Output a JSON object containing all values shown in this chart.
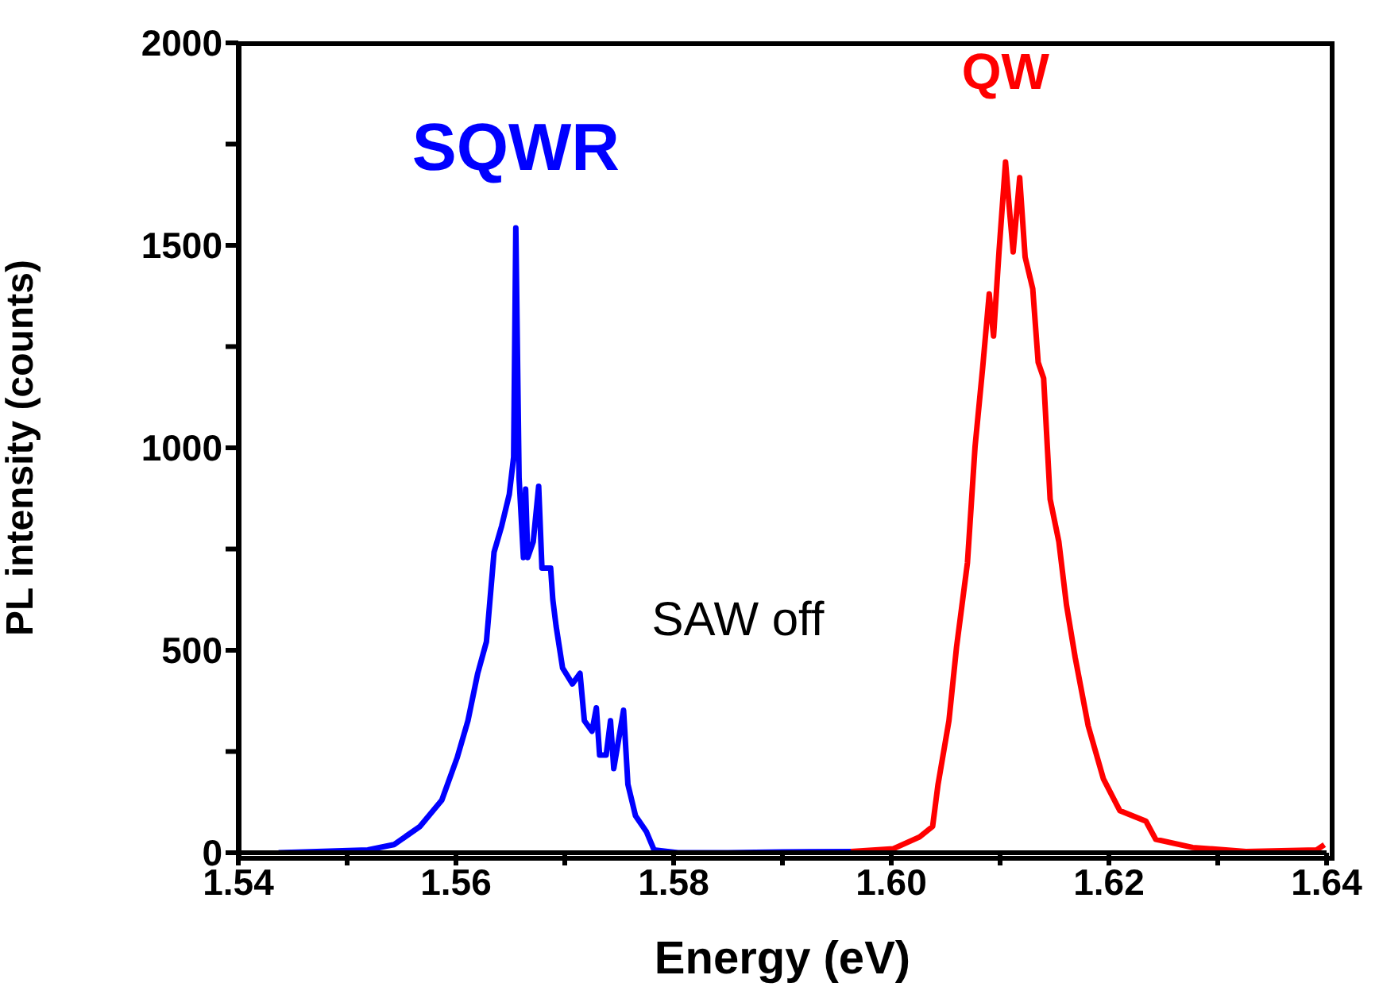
{
  "chart_data": {
    "type": "line",
    "xlabel": "Energy (eV)",
    "ylabel": "PL intensity (counts)",
    "xlim": [
      1.54,
      1.64
    ],
    "ylim": [
      0,
      2000
    ],
    "xticks": [
      {
        "value": 1.54,
        "label": "1.54"
      },
      {
        "value": 1.55,
        "label": null
      },
      {
        "value": 1.56,
        "label": "1.56"
      },
      {
        "value": 1.57,
        "label": null
      },
      {
        "value": 1.58,
        "label": "1.58"
      },
      {
        "value": 1.59,
        "label": null
      },
      {
        "value": 1.6,
        "label": "1.60"
      },
      {
        "value": 1.61,
        "label": null
      },
      {
        "value": 1.62,
        "label": "1.62"
      },
      {
        "value": 1.63,
        "label": null
      },
      {
        "value": 1.64,
        "label": "1.64"
      }
    ],
    "yticks": [
      0,
      {
        "value": 250,
        "label": null
      },
      500,
      {
        "value": 750,
        "label": null
      },
      1000,
      {
        "value": 1250,
        "label": null
      },
      1500,
      {
        "value": 1750,
        "label": null
      },
      2000
    ],
    "grid": false,
    "legend": false,
    "marker": "none",
    "line_style": "solid",
    "annotations": [
      "SAW off"
    ],
    "series": [
      {
        "name": "SQWR",
        "color": "#0000ff",
        "x": [
          1.5437,
          1.5519,
          1.5543,
          1.5567,
          1.5587,
          1.5601,
          1.5611,
          1.562,
          1.5628,
          1.5635,
          1.5642,
          1.5649,
          1.5653,
          1.5655,
          1.5658,
          1.5662,
          1.5664,
          1.5666,
          1.5671,
          1.5676,
          1.5679,
          1.5687,
          1.5689,
          1.5692,
          1.5698,
          1.5707,
          1.5714,
          1.5718,
          1.5725,
          1.5729,
          1.5732,
          1.5738,
          1.5742,
          1.5745,
          1.5754,
          1.5758,
          1.5765,
          1.5775,
          1.5782,
          1.5804,
          1.585,
          1.59,
          1.597
        ],
        "values": [
          0,
          7,
          20,
          65,
          130,
          234,
          326,
          443,
          521,
          742,
          807,
          885,
          977,
          1543,
          925,
          729,
          898,
          729,
          768,
          905,
          703,
          703,
          625,
          560,
          456,
          417,
          443,
          326,
          300,
          358,
          241,
          241,
          326,
          208,
          352,
          169,
          91,
          52,
          7,
          0,
          0,
          2,
          3
        ]
      },
      {
        "name": "QW",
        "color": "#ff0000",
        "x": [
          1.5963,
          1.6002,
          1.6026,
          1.6038,
          1.6043,
          1.6053,
          1.606,
          1.607,
          1.6077,
          1.6084,
          1.609,
          1.6094,
          1.6099,
          1.6105,
          1.6109,
          1.6112,
          1.6118,
          1.6123,
          1.613,
          1.6135,
          1.614,
          1.6146,
          1.6154,
          1.6161,
          1.6169,
          1.6181,
          1.6195,
          1.621,
          1.6234,
          1.6243,
          1.6277,
          1.6326,
          1.6391,
          1.6398
        ],
        "values": [
          3,
          10,
          39,
          65,
          169,
          326,
          508,
          716,
          1003,
          1198,
          1380,
          1276,
          1484,
          1706,
          1576,
          1484,
          1667,
          1471,
          1393,
          1211,
          1172,
          873,
          768,
          612,
          482,
          313,
          182,
          104,
          78,
          33,
          13,
          3,
          7,
          20
        ]
      }
    ]
  }
}
